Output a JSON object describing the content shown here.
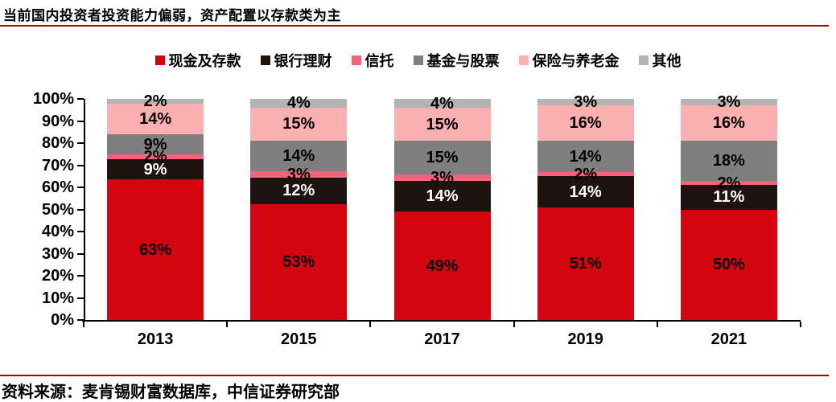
{
  "title": "当前国内投资者投资能力偏弱，资产配置以存款类为主",
  "source": "资料来源：麦肯锡财富数据库，中信证券研究部",
  "colors": {
    "rule_red": "#AA0000",
    "axis": "#000000",
    "background": "#FFFFFF"
  },
  "chart_data": {
    "type": "bar",
    "stacked": true,
    "grid": false,
    "legend_position": "top",
    "categories": [
      "2013",
      "2015",
      "2017",
      "2019",
      "2021"
    ],
    "series": [
      {
        "name": "现金及存款",
        "color": "#D40511",
        "label_color": "#000000",
        "values": [
          63,
          53,
          49,
          51,
          50
        ]
      },
      {
        "name": "银行理财",
        "color": "#1F1310",
        "label_color": "#FFFFFF",
        "values": [
          9,
          12,
          14,
          14,
          11
        ]
      },
      {
        "name": "信托",
        "color": "#F4627C",
        "label_color": "#000000",
        "values": [
          2,
          3,
          3,
          2,
          2
        ]
      },
      {
        "name": "基金与股票",
        "color": "#7F7F7F",
        "label_color": "#000000",
        "values": [
          9,
          14,
          15,
          14,
          18
        ]
      },
      {
        "name": "保险与养老金",
        "color": "#FAAFB1",
        "label_color": "#000000",
        "values": [
          14,
          15,
          15,
          16,
          16
        ]
      },
      {
        "name": "其他",
        "color": "#B3B3B3",
        "label_color": "#000000",
        "values": [
          2,
          4,
          4,
          3,
          3
        ]
      }
    ],
    "value_suffix": "%",
    "y_axis": {
      "min": 0,
      "max": 100,
      "step": 10,
      "tick_labels": [
        "0%",
        "10%",
        "20%",
        "30%",
        "40%",
        "50%",
        "60%",
        "70%",
        "80%",
        "90%",
        "100%"
      ]
    }
  }
}
